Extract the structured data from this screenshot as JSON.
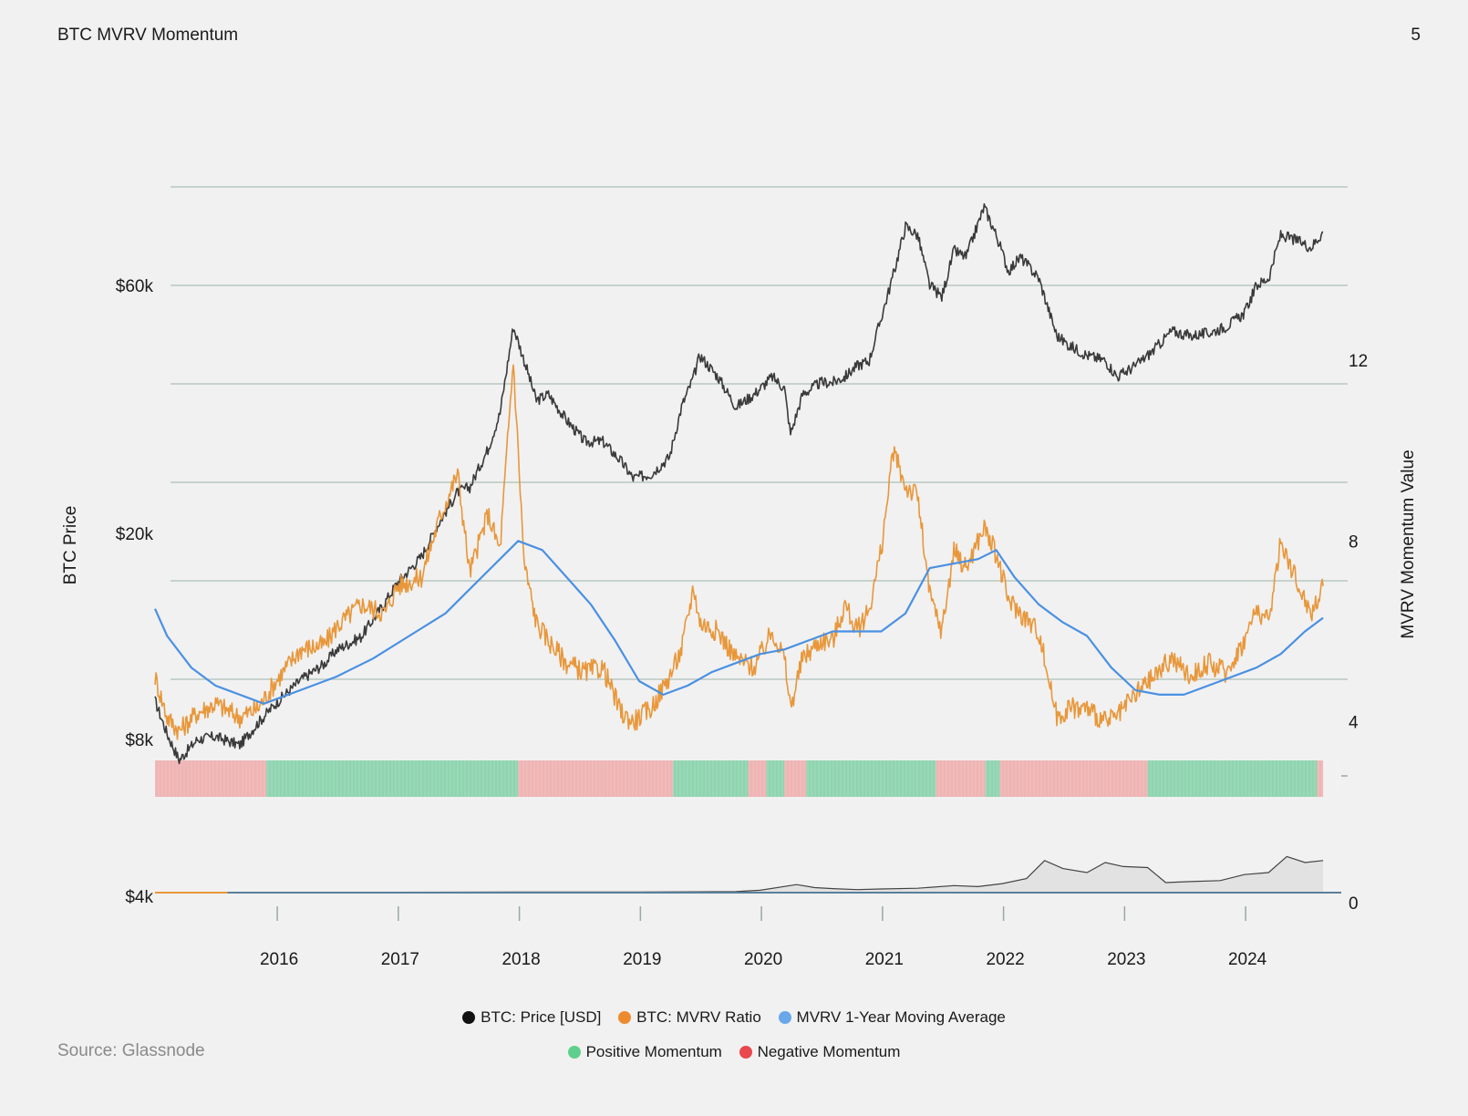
{
  "page": {
    "title": "BTC MVRV Momentum",
    "number": "5",
    "source": "Source: Glassnode"
  },
  "colors": {
    "price": "#3a3a3a",
    "mvrv": "#e8973a",
    "moving_average": "#4a90e2",
    "positive": "#8fd4b0",
    "negative": "#efb4b4",
    "grid": "#b9c7c1",
    "background": "#f1f1f1"
  },
  "legend": [
    {
      "label": "BTC: Price [USD]",
      "color": "#111111"
    },
    {
      "label": "BTC: MVRV Ratio",
      "color": "#ee8a2e"
    },
    {
      "label": "MVRV 1-Year Moving Average",
      "color": "#6aa7ea"
    },
    {
      "label": "Positive Momentum",
      "color": "#5fcf8d"
    },
    {
      "label": "Negative Momentum",
      "color": "#e8484e"
    }
  ],
  "chart_data": {
    "type": "line",
    "xlabel": "",
    "ylabel_left": "BTC Price",
    "ylabel_right": "MVRV Momentum Value",
    "x_ticks": [
      "2016",
      "2017",
      "2018",
      "2019",
      "2020",
      "2021",
      "2022",
      "2023",
      "2024"
    ],
    "x_range": [
      2015.0,
      2024.8
    ],
    "left_axis": {
      "scale": "log",
      "ticks": [
        "$60k",
        "$20k",
        "$8k",
        "$4k"
      ],
      "tick_values": [
        60000,
        20000,
        8000,
        4000
      ]
    },
    "right_axis": {
      "scale": "linear",
      "ticks": [
        "12",
        "8",
        "4",
        "0"
      ],
      "tick_values": [
        12,
        8,
        4,
        0
      ],
      "range": [
        0,
        16
      ]
    },
    "grid": true,
    "series": [
      {
        "name": "BTC: Price [USD]",
        "axis": "left",
        "x": [
          2015.0,
          2015.1,
          2015.2,
          2015.35,
          2015.5,
          2015.7,
          2015.85,
          2016.0,
          2016.2,
          2016.4,
          2016.5,
          2016.7,
          2016.9,
          2017.0,
          2017.2,
          2017.35,
          2017.5,
          2017.6,
          2017.75,
          2017.85,
          2017.96,
          2018.05,
          2018.15,
          2018.25,
          2018.4,
          2018.55,
          2018.7,
          2018.85,
          2018.95,
          2019.1,
          2019.25,
          2019.35,
          2019.45,
          2019.5,
          2019.65,
          2019.8,
          2019.95,
          2020.1,
          2020.2,
          2020.25,
          2020.35,
          2020.5,
          2020.6,
          2020.7,
          2020.8,
          2020.9,
          2021.0,
          2021.1,
          2021.2,
          2021.3,
          2021.4,
          2021.5,
          2021.6,
          2021.7,
          2021.85,
          2021.95,
          2022.05,
          2022.15,
          2022.3,
          2022.45,
          2022.55,
          2022.7,
          2022.85,
          2022.95,
          2023.1,
          2023.25,
          2023.4,
          2023.55,
          2023.7,
          2023.85,
          2024.0,
          2024.1,
          2024.2,
          2024.3,
          2024.45,
          2024.55,
          2024.65
        ],
        "y": [
          9500,
          8200,
          7300,
          8000,
          8100,
          7800,
          8600,
          9400,
          10400,
          11200,
          11900,
          12600,
          14700,
          16000,
          18000,
          21000,
          24000,
          24500,
          29000,
          34000,
          50000,
          43000,
          36000,
          37000,
          33000,
          30000,
          30000,
          27500,
          25500,
          26000,
          28000,
          35000,
          40000,
          44000,
          40000,
          35000,
          37000,
          40000,
          38000,
          31000,
          37000,
          39000,
          39000,
          40000,
          42000,
          43000,
          52000,
          63000,
          78000,
          75000,
          60000,
          57000,
          70000,
          68000,
          85000,
          75000,
          64000,
          68000,
          62000,
          48000,
          46000,
          44000,
          43000,
          40000,
          42000,
          45000,
          49000,
          48000,
          48500,
          50000,
          53000,
          60000,
          62000,
          75000,
          73000,
          71000,
          76000
        ]
      },
      {
        "name": "BTC: MVRV Ratio",
        "axis": "right",
        "x": [
          2015.0,
          2015.1,
          2015.2,
          2015.35,
          2015.5,
          2015.7,
          2015.85,
          2016.0,
          2016.2,
          2016.4,
          2016.5,
          2016.7,
          2016.9,
          2017.0,
          2017.2,
          2017.35,
          2017.5,
          2017.6,
          2017.75,
          2017.85,
          2017.96,
          2018.05,
          2018.15,
          2018.25,
          2018.4,
          2018.55,
          2018.7,
          2018.85,
          2018.95,
          2019.1,
          2019.25,
          2019.35,
          2019.45,
          2019.5,
          2019.65,
          2019.8,
          2019.95,
          2020.1,
          2020.2,
          2020.25,
          2020.35,
          2020.5,
          2020.6,
          2020.7,
          2020.8,
          2020.9,
          2021.0,
          2021.1,
          2021.2,
          2021.3,
          2021.4,
          2021.5,
          2021.6,
          2021.7,
          2021.85,
          2021.95,
          2022.05,
          2022.15,
          2022.3,
          2022.45,
          2022.55,
          2022.7,
          2022.85,
          2022.95,
          2023.1,
          2023.25,
          2023.4,
          2023.55,
          2023.7,
          2023.85,
          2024.0,
          2024.1,
          2024.2,
          2024.3,
          2024.45,
          2024.55,
          2024.65
        ],
        "y": [
          5.0,
          4.1,
          3.8,
          4.2,
          4.4,
          4.1,
          4.3,
          4.9,
          5.6,
          5.7,
          6.1,
          6.6,
          6.4,
          7.0,
          7.2,
          8.5,
          9.5,
          7.3,
          8.6,
          7.8,
          12.0,
          7.5,
          6.2,
          5.8,
          5.3,
          5.1,
          5.2,
          4.2,
          4.0,
          4.3,
          5.0,
          5.6,
          7.0,
          6.2,
          6.0,
          5.4,
          5.2,
          6.0,
          5.4,
          4.3,
          5.4,
          5.8,
          5.8,
          6.6,
          6.0,
          6.5,
          7.8,
          10.0,
          9.2,
          9.0,
          6.8,
          6.0,
          7.8,
          7.4,
          8.3,
          7.7,
          6.7,
          6.4,
          6.0,
          4.1,
          4.3,
          4.3,
          4.0,
          4.1,
          4.6,
          5.0,
          5.4,
          5.0,
          5.3,
          5.1,
          5.8,
          6.5,
          6.2,
          8.0,
          7.0,
          6.4,
          7.0
        ]
      },
      {
        "name": "MVRV 1-Year Moving Average",
        "axis": "right",
        "x": [
          2015.0,
          2015.1,
          2015.3,
          2015.5,
          2015.7,
          2015.9,
          2016.2,
          2016.5,
          2016.8,
          2017.1,
          2017.4,
          2017.7,
          2018.0,
          2018.2,
          2018.4,
          2018.6,
          2018.8,
          2019.0,
          2019.2,
          2019.4,
          2019.6,
          2019.8,
          2020.0,
          2020.2,
          2020.4,
          2020.6,
          2020.8,
          2021.0,
          2021.2,
          2021.4,
          2021.6,
          2021.8,
          2021.95,
          2022.1,
          2022.3,
          2022.5,
          2022.7,
          2022.9,
          2023.1,
          2023.3,
          2023.5,
          2023.7,
          2023.9,
          2024.1,
          2024.3,
          2024.5,
          2024.65
        ],
        "y": [
          6.5,
          5.9,
          5.2,
          4.8,
          4.6,
          4.4,
          4.7,
          5.0,
          5.4,
          5.9,
          6.4,
          7.2,
          8.0,
          7.8,
          7.2,
          6.6,
          5.8,
          4.9,
          4.6,
          4.8,
          5.1,
          5.3,
          5.5,
          5.6,
          5.8,
          6.0,
          6.0,
          6.0,
          6.4,
          7.4,
          7.5,
          7.6,
          7.8,
          7.2,
          6.6,
          6.2,
          5.9,
          5.2,
          4.7,
          4.6,
          4.6,
          4.8,
          5.0,
          5.2,
          5.5,
          6.0,
          6.3
        ]
      }
    ],
    "momentum_periods": [
      {
        "from": 2015.0,
        "to": 2015.92,
        "state": "negative"
      },
      {
        "from": 2015.92,
        "to": 2018.0,
        "state": "positive"
      },
      {
        "from": 2018.0,
        "to": 2019.28,
        "state": "negative"
      },
      {
        "from": 2019.28,
        "to": 2019.9,
        "state": "positive"
      },
      {
        "from": 2019.9,
        "to": 2020.05,
        "state": "negative"
      },
      {
        "from": 2020.05,
        "to": 2020.2,
        "state": "positive"
      },
      {
        "from": 2020.2,
        "to": 2020.38,
        "state": "negative"
      },
      {
        "from": 2020.38,
        "to": 2021.45,
        "state": "positive"
      },
      {
        "from": 2021.45,
        "to": 2021.86,
        "state": "negative"
      },
      {
        "from": 2021.86,
        "to": 2021.98,
        "state": "positive"
      },
      {
        "from": 2021.98,
        "to": 2023.2,
        "state": "negative"
      },
      {
        "from": 2023.2,
        "to": 2024.6,
        "state": "positive"
      },
      {
        "from": 2024.6,
        "to": 2024.65,
        "state": "negative"
      }
    ],
    "bottom_panel": {
      "x": [
        2015.0,
        2015.6,
        2016.0,
        2017.0,
        2018.0,
        2019.0,
        2019.8,
        2020.0,
        2020.3,
        2020.45,
        2020.6,
        2020.8,
        2021.0,
        2021.3,
        2021.6,
        2021.8,
        2022.0,
        2022.2,
        2022.35,
        2022.5,
        2022.7,
        2022.85,
        2023.0,
        2023.2,
        2023.35,
        2023.55,
        2023.8,
        2024.0,
        2024.2,
        2024.35,
        2024.5,
        2024.65
      ],
      "y": [
        0.0,
        0.0,
        0.02,
        0.02,
        0.03,
        0.03,
        0.05,
        0.12,
        0.4,
        0.25,
        0.2,
        0.15,
        0.18,
        0.22,
        0.35,
        0.3,
        0.45,
        0.7,
        1.6,
        1.2,
        1.0,
        1.5,
        1.3,
        1.25,
        0.5,
        0.55,
        0.6,
        0.9,
        1.0,
        1.8,
        1.5,
        1.6
      ]
    }
  }
}
